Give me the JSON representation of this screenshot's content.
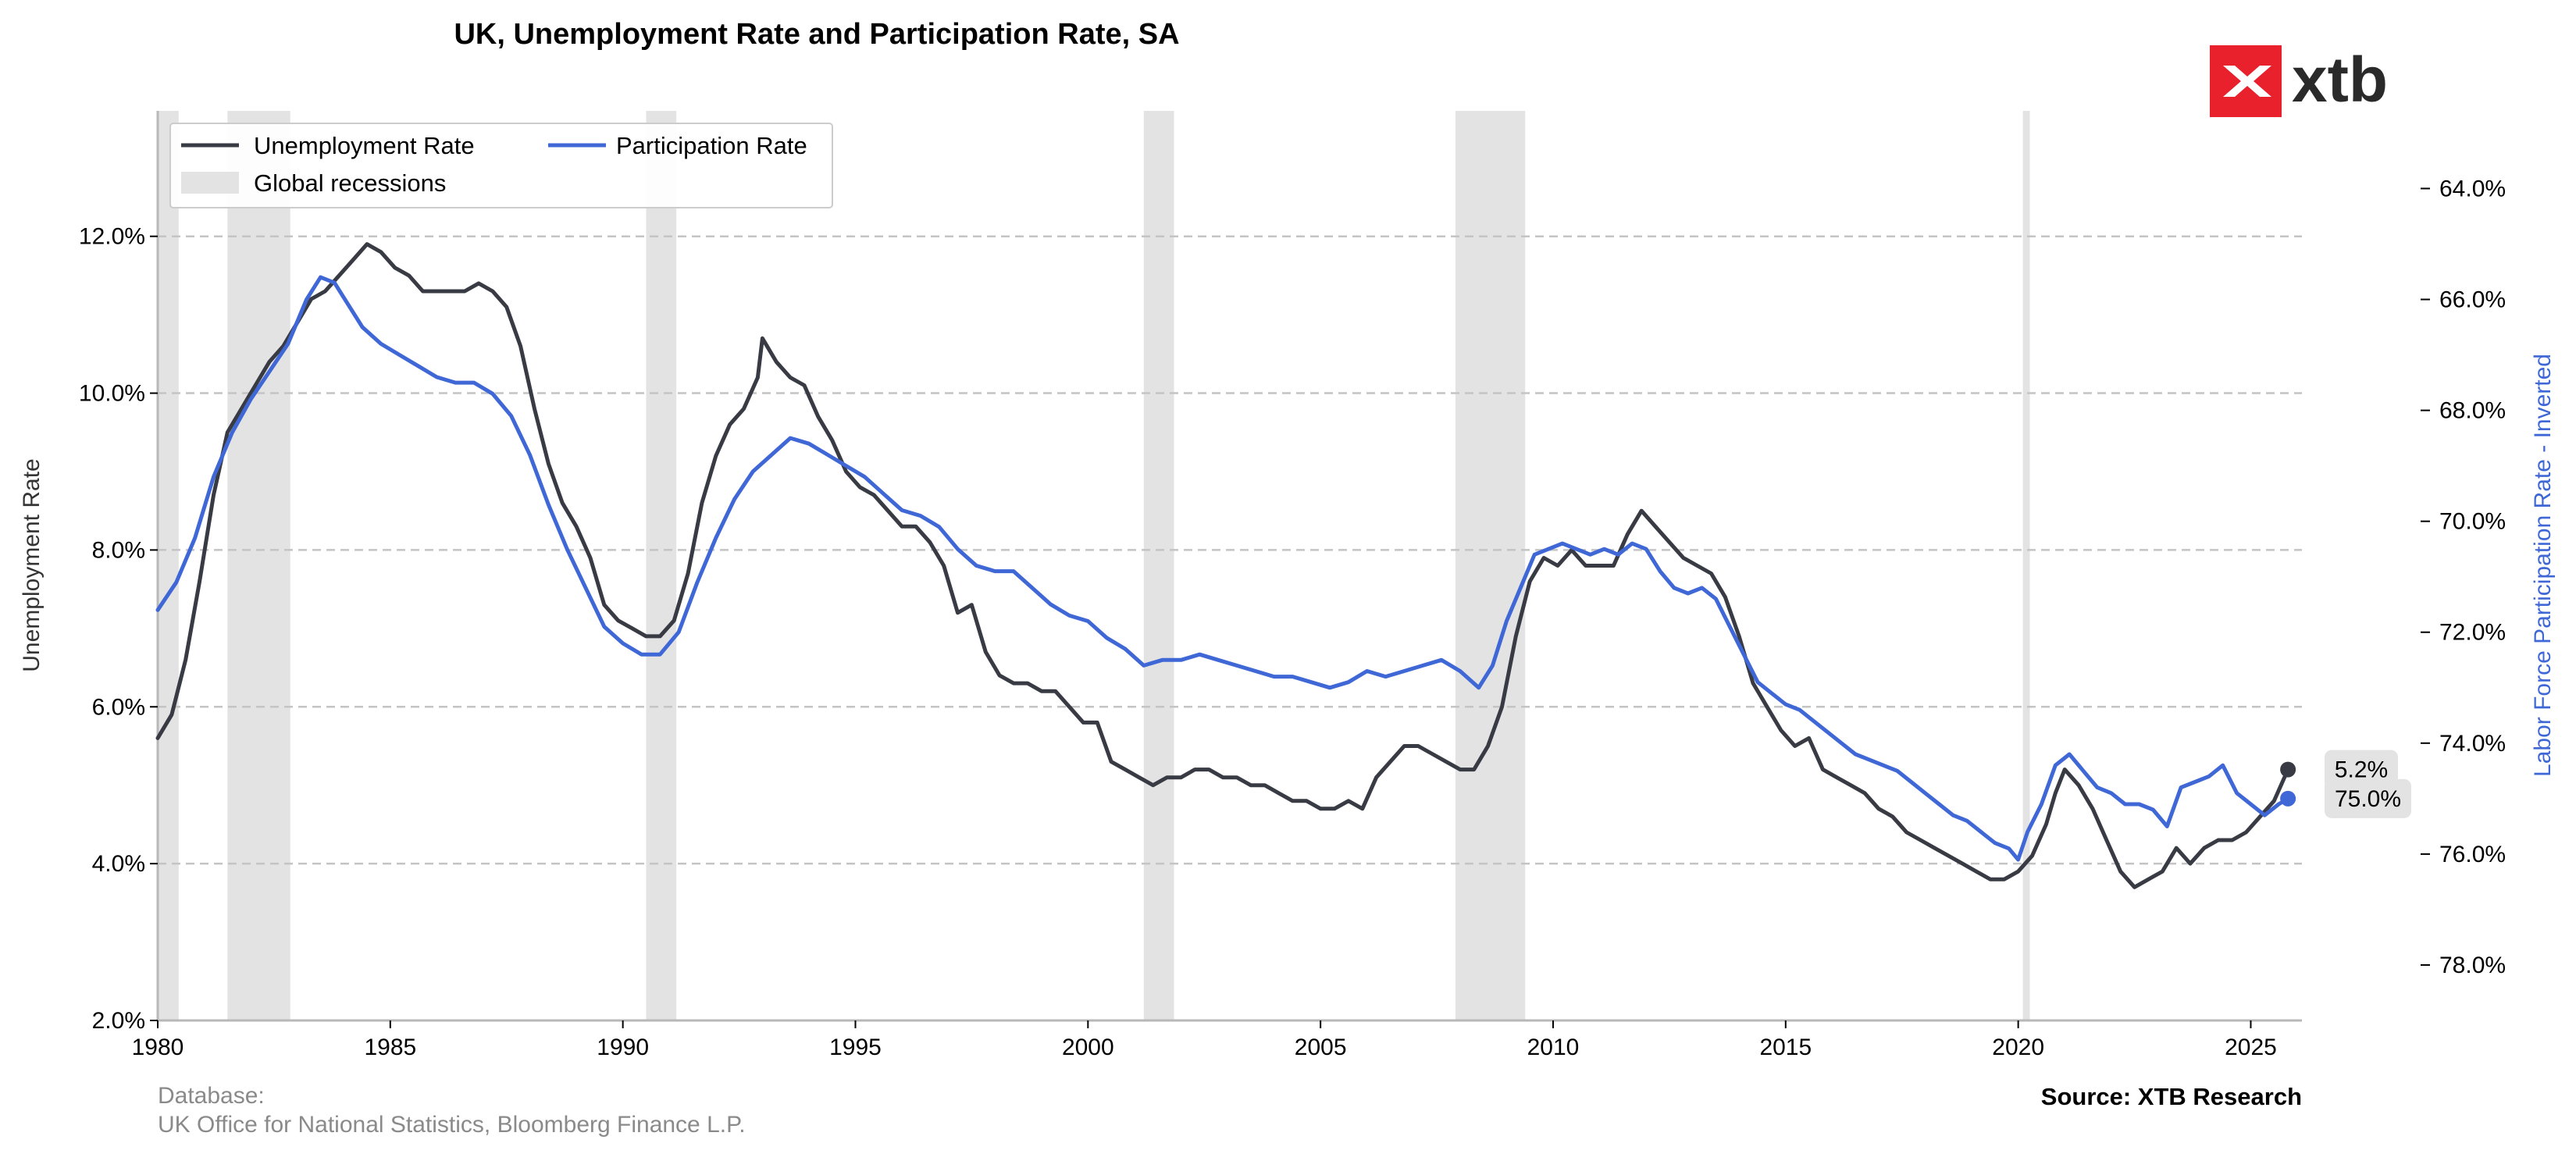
{
  "chart_data": {
    "type": "line",
    "title": "UK, Unemployment Rate and Participation Rate, SA",
    "ylabel": "Unemployment Rate",
    "y2label": "Labor Force Participation Rate - Inverted",
    "xlim": [
      1980,
      2026.1
    ],
    "ylim": [
      2.0,
      13.6
    ],
    "y2lim": [
      79.0,
      62.6
    ],
    "y2_inverted": true,
    "x_ticks": [
      "1980",
      "1985",
      "1990",
      "1995",
      "2000",
      "2005",
      "2010",
      "2015",
      "2020",
      "2025"
    ],
    "y_ticks": [
      "2.0%",
      "4.0%",
      "6.0%",
      "8.0%",
      "10.0%",
      "12.0%"
    ],
    "y2_ticks": [
      "64.0%",
      "66.0%",
      "68.0%",
      "70.0%",
      "72.0%",
      "74.0%",
      "76.0%",
      "78.0%"
    ],
    "grid": "horizontal dashed",
    "legend_position": "top-left",
    "recessions_label": "Global recessions",
    "recessions": [
      [
        1980.0,
        1980.45
      ],
      [
        1981.5,
        1982.85
      ],
      [
        1990.5,
        1991.15
      ],
      [
        2001.2,
        2001.85
      ],
      [
        2007.9,
        2009.4
      ],
      [
        2020.1,
        2020.25
      ]
    ],
    "series": [
      {
        "name": "Unemployment Rate",
        "axis": "left",
        "color": "#393b44",
        "end_label": "5.2%",
        "points": [
          [
            1980.0,
            5.6
          ],
          [
            1980.3,
            5.9
          ],
          [
            1980.6,
            6.6
          ],
          [
            1980.9,
            7.6
          ],
          [
            1981.2,
            8.7
          ],
          [
            1981.5,
            9.5
          ],
          [
            1981.8,
            9.8
          ],
          [
            1982.1,
            10.1
          ],
          [
            1982.4,
            10.4
          ],
          [
            1982.7,
            10.6
          ],
          [
            1983.0,
            10.9
          ],
          [
            1983.3,
            11.2
          ],
          [
            1983.6,
            11.3
          ],
          [
            1983.9,
            11.5
          ],
          [
            1984.2,
            11.7
          ],
          [
            1984.5,
            11.9
          ],
          [
            1984.8,
            11.8
          ],
          [
            1985.1,
            11.6
          ],
          [
            1985.4,
            11.5
          ],
          [
            1985.7,
            11.3
          ],
          [
            1986.0,
            11.3
          ],
          [
            1986.3,
            11.3
          ],
          [
            1986.6,
            11.3
          ],
          [
            1986.9,
            11.4
          ],
          [
            1987.2,
            11.3
          ],
          [
            1987.5,
            11.1
          ],
          [
            1987.8,
            10.6
          ],
          [
            1988.1,
            9.8
          ],
          [
            1988.4,
            9.1
          ],
          [
            1988.7,
            8.6
          ],
          [
            1989.0,
            8.3
          ],
          [
            1989.3,
            7.9
          ],
          [
            1989.6,
            7.3
          ],
          [
            1989.9,
            7.1
          ],
          [
            1990.2,
            7.0
          ],
          [
            1990.5,
            6.9
          ],
          [
            1990.8,
            6.9
          ],
          [
            1991.1,
            7.1
          ],
          [
            1991.4,
            7.7
          ],
          [
            1991.7,
            8.6
          ],
          [
            1992.0,
            9.2
          ],
          [
            1992.3,
            9.6
          ],
          [
            1992.6,
            9.8
          ],
          [
            1992.9,
            10.2
          ],
          [
            1993.0,
            10.7
          ],
          [
            1993.3,
            10.4
          ],
          [
            1993.6,
            10.2
          ],
          [
            1993.9,
            10.1
          ],
          [
            1994.2,
            9.7
          ],
          [
            1994.5,
            9.4
          ],
          [
            1994.8,
            9.0
          ],
          [
            1995.1,
            8.8
          ],
          [
            1995.4,
            8.7
          ],
          [
            1995.7,
            8.5
          ],
          [
            1996.0,
            8.3
          ],
          [
            1996.3,
            8.3
          ],
          [
            1996.6,
            8.1
          ],
          [
            1996.9,
            7.8
          ],
          [
            1997.2,
            7.2
          ],
          [
            1997.5,
            7.3
          ],
          [
            1997.8,
            6.7
          ],
          [
            1998.1,
            6.4
          ],
          [
            1998.4,
            6.3
          ],
          [
            1998.7,
            6.3
          ],
          [
            1999.0,
            6.2
          ],
          [
            1999.3,
            6.2
          ],
          [
            1999.6,
            6.0
          ],
          [
            1999.9,
            5.8
          ],
          [
            2000.2,
            5.8
          ],
          [
            2000.5,
            5.3
          ],
          [
            2000.8,
            5.2
          ],
          [
            2001.1,
            5.1
          ],
          [
            2001.4,
            5.0
          ],
          [
            2001.7,
            5.1
          ],
          [
            2002.0,
            5.1
          ],
          [
            2002.3,
            5.2
          ],
          [
            2002.6,
            5.2
          ],
          [
            2002.9,
            5.1
          ],
          [
            2003.2,
            5.1
          ],
          [
            2003.5,
            5.0
          ],
          [
            2003.8,
            5.0
          ],
          [
            2004.1,
            4.9
          ],
          [
            2004.4,
            4.8
          ],
          [
            2004.7,
            4.8
          ],
          [
            2005.0,
            4.7
          ],
          [
            2005.3,
            4.7
          ],
          [
            2005.6,
            4.8
          ],
          [
            2005.9,
            4.7
          ],
          [
            2006.2,
            5.1
          ],
          [
            2006.5,
            5.3
          ],
          [
            2006.8,
            5.5
          ],
          [
            2007.1,
            5.5
          ],
          [
            2007.4,
            5.4
          ],
          [
            2007.7,
            5.3
          ],
          [
            2008.0,
            5.2
          ],
          [
            2008.3,
            5.2
          ],
          [
            2008.6,
            5.5
          ],
          [
            2008.9,
            6.0
          ],
          [
            2009.2,
            6.9
          ],
          [
            2009.5,
            7.6
          ],
          [
            2009.8,
            7.9
          ],
          [
            2010.1,
            7.8
          ],
          [
            2010.4,
            8.0
          ],
          [
            2010.7,
            7.8
          ],
          [
            2011.0,
            7.8
          ],
          [
            2011.3,
            7.8
          ],
          [
            2011.6,
            8.2
          ],
          [
            2011.9,
            8.5
          ],
          [
            2012.2,
            8.3
          ],
          [
            2012.5,
            8.1
          ],
          [
            2012.8,
            7.9
          ],
          [
            2013.1,
            7.8
          ],
          [
            2013.4,
            7.7
          ],
          [
            2013.7,
            7.4
          ],
          [
            2014.0,
            6.9
          ],
          [
            2014.3,
            6.3
          ],
          [
            2014.6,
            6.0
          ],
          [
            2014.9,
            5.7
          ],
          [
            2015.2,
            5.5
          ],
          [
            2015.5,
            5.6
          ],
          [
            2015.8,
            5.2
          ],
          [
            2016.1,
            5.1
          ],
          [
            2016.4,
            5.0
          ],
          [
            2016.7,
            4.9
          ],
          [
            2017.0,
            4.7
          ],
          [
            2017.3,
            4.6
          ],
          [
            2017.6,
            4.4
          ],
          [
            2017.9,
            4.3
          ],
          [
            2018.2,
            4.2
          ],
          [
            2018.5,
            4.1
          ],
          [
            2018.8,
            4.0
          ],
          [
            2019.1,
            3.9
          ],
          [
            2019.4,
            3.8
          ],
          [
            2019.7,
            3.8
          ],
          [
            2020.0,
            3.9
          ],
          [
            2020.3,
            4.1
          ],
          [
            2020.6,
            4.5
          ],
          [
            2020.8,
            4.9
          ],
          [
            2021.0,
            5.2
          ],
          [
            2021.3,
            5.0
          ],
          [
            2021.6,
            4.7
          ],
          [
            2021.9,
            4.3
          ],
          [
            2022.2,
            3.9
          ],
          [
            2022.5,
            3.7
          ],
          [
            2022.8,
            3.8
          ],
          [
            2023.1,
            3.9
          ],
          [
            2023.4,
            4.2
          ],
          [
            2023.7,
            4.0
          ],
          [
            2024.0,
            4.2
          ],
          [
            2024.3,
            4.3
          ],
          [
            2024.6,
            4.3
          ],
          [
            2024.9,
            4.4
          ],
          [
            2025.2,
            4.6
          ],
          [
            2025.5,
            4.8
          ],
          [
            2025.8,
            5.2
          ]
        ]
      },
      {
        "name": "Participation Rate",
        "axis": "right",
        "color": "#3f68d6",
        "end_label": "75.0%",
        "points": [
          [
            1980.0,
            71.6
          ],
          [
            1980.4,
            71.1
          ],
          [
            1980.8,
            70.3
          ],
          [
            1981.2,
            69.2
          ],
          [
            1981.6,
            68.4
          ],
          [
            1982.0,
            67.8
          ],
          [
            1982.4,
            67.3
          ],
          [
            1982.8,
            66.8
          ],
          [
            1983.2,
            66.0
          ],
          [
            1983.5,
            65.6
          ],
          [
            1983.8,
            65.7
          ],
          [
            1984.1,
            66.1
          ],
          [
            1984.4,
            66.5
          ],
          [
            1984.8,
            66.8
          ],
          [
            1985.2,
            67.0
          ],
          [
            1985.6,
            67.2
          ],
          [
            1986.0,
            67.4
          ],
          [
            1986.4,
            67.5
          ],
          [
            1986.8,
            67.5
          ],
          [
            1987.2,
            67.7
          ],
          [
            1987.6,
            68.1
          ],
          [
            1988.0,
            68.8
          ],
          [
            1988.4,
            69.7
          ],
          [
            1988.8,
            70.5
          ],
          [
            1989.2,
            71.2
          ],
          [
            1989.6,
            71.9
          ],
          [
            1990.0,
            72.2
          ],
          [
            1990.4,
            72.4
          ],
          [
            1990.8,
            72.4
          ],
          [
            1991.2,
            72.0
          ],
          [
            1991.6,
            71.1
          ],
          [
            1992.0,
            70.3
          ],
          [
            1992.4,
            69.6
          ],
          [
            1992.8,
            69.1
          ],
          [
            1993.2,
            68.8
          ],
          [
            1993.6,
            68.5
          ],
          [
            1994.0,
            68.6
          ],
          [
            1994.4,
            68.8
          ],
          [
            1994.8,
            69.0
          ],
          [
            1995.2,
            69.2
          ],
          [
            1995.6,
            69.5
          ],
          [
            1996.0,
            69.8
          ],
          [
            1996.4,
            69.9
          ],
          [
            1996.8,
            70.1
          ],
          [
            1997.2,
            70.5
          ],
          [
            1997.6,
            70.8
          ],
          [
            1998.0,
            70.9
          ],
          [
            1998.4,
            70.9
          ],
          [
            1998.8,
            71.2
          ],
          [
            1999.2,
            71.5
          ],
          [
            1999.6,
            71.7
          ],
          [
            2000.0,
            71.8
          ],
          [
            2000.4,
            72.1
          ],
          [
            2000.8,
            72.3
          ],
          [
            2001.2,
            72.6
          ],
          [
            2001.6,
            72.5
          ],
          [
            2002.0,
            72.5
          ],
          [
            2002.4,
            72.4
          ],
          [
            2002.8,
            72.5
          ],
          [
            2003.2,
            72.6
          ],
          [
            2003.6,
            72.7
          ],
          [
            2004.0,
            72.8
          ],
          [
            2004.4,
            72.8
          ],
          [
            2004.8,
            72.9
          ],
          [
            2005.2,
            73.0
          ],
          [
            2005.6,
            72.9
          ],
          [
            2006.0,
            72.7
          ],
          [
            2006.4,
            72.8
          ],
          [
            2006.8,
            72.7
          ],
          [
            2007.2,
            72.6
          ],
          [
            2007.6,
            72.5
          ],
          [
            2008.0,
            72.7
          ],
          [
            2008.4,
            73.0
          ],
          [
            2008.7,
            72.6
          ],
          [
            2009.0,
            71.8
          ],
          [
            2009.3,
            71.2
          ],
          [
            2009.6,
            70.6
          ],
          [
            2009.9,
            70.5
          ],
          [
            2010.2,
            70.4
          ],
          [
            2010.5,
            70.5
          ],
          [
            2010.8,
            70.6
          ],
          [
            2011.1,
            70.5
          ],
          [
            2011.4,
            70.6
          ],
          [
            2011.7,
            70.4
          ],
          [
            2012.0,
            70.5
          ],
          [
            2012.3,
            70.9
          ],
          [
            2012.6,
            71.2
          ],
          [
            2012.9,
            71.3
          ],
          [
            2013.2,
            71.2
          ],
          [
            2013.5,
            71.4
          ],
          [
            2013.8,
            71.9
          ],
          [
            2014.1,
            72.4
          ],
          [
            2014.4,
            72.9
          ],
          [
            2014.7,
            73.1
          ],
          [
            2015.0,
            73.3
          ],
          [
            2015.3,
            73.4
          ],
          [
            2015.6,
            73.6
          ],
          [
            2015.9,
            73.8
          ],
          [
            2016.2,
            74.0
          ],
          [
            2016.5,
            74.2
          ],
          [
            2016.8,
            74.3
          ],
          [
            2017.1,
            74.4
          ],
          [
            2017.4,
            74.5
          ],
          [
            2017.7,
            74.7
          ],
          [
            2018.0,
            74.9
          ],
          [
            2018.3,
            75.1
          ],
          [
            2018.6,
            75.3
          ],
          [
            2018.9,
            75.4
          ],
          [
            2019.2,
            75.6
          ],
          [
            2019.5,
            75.8
          ],
          [
            2019.8,
            75.9
          ],
          [
            2020.0,
            76.1
          ],
          [
            2020.2,
            75.6
          ],
          [
            2020.5,
            75.1
          ],
          [
            2020.8,
            74.4
          ],
          [
            2021.1,
            74.2
          ],
          [
            2021.4,
            74.5
          ],
          [
            2021.7,
            74.8
          ],
          [
            2022.0,
            74.9
          ],
          [
            2022.3,
            75.1
          ],
          [
            2022.6,
            75.1
          ],
          [
            2022.9,
            75.2
          ],
          [
            2023.2,
            75.5
          ],
          [
            2023.5,
            74.8
          ],
          [
            2023.8,
            74.7
          ],
          [
            2024.1,
            74.6
          ],
          [
            2024.4,
            74.4
          ],
          [
            2024.7,
            74.9
          ],
          [
            2025.0,
            75.1
          ],
          [
            2025.3,
            75.3
          ],
          [
            2025.6,
            75.1
          ],
          [
            2025.8,
            75.0
          ]
        ]
      }
    ]
  },
  "footer": {
    "database_label": "Database:",
    "database_sources": "UK Office for National Statistics, Bloomberg Finance L.P.",
    "source": "Source: XTB Research"
  },
  "logo": {
    "text": "xtb",
    "badge_color": "#e8212c"
  }
}
